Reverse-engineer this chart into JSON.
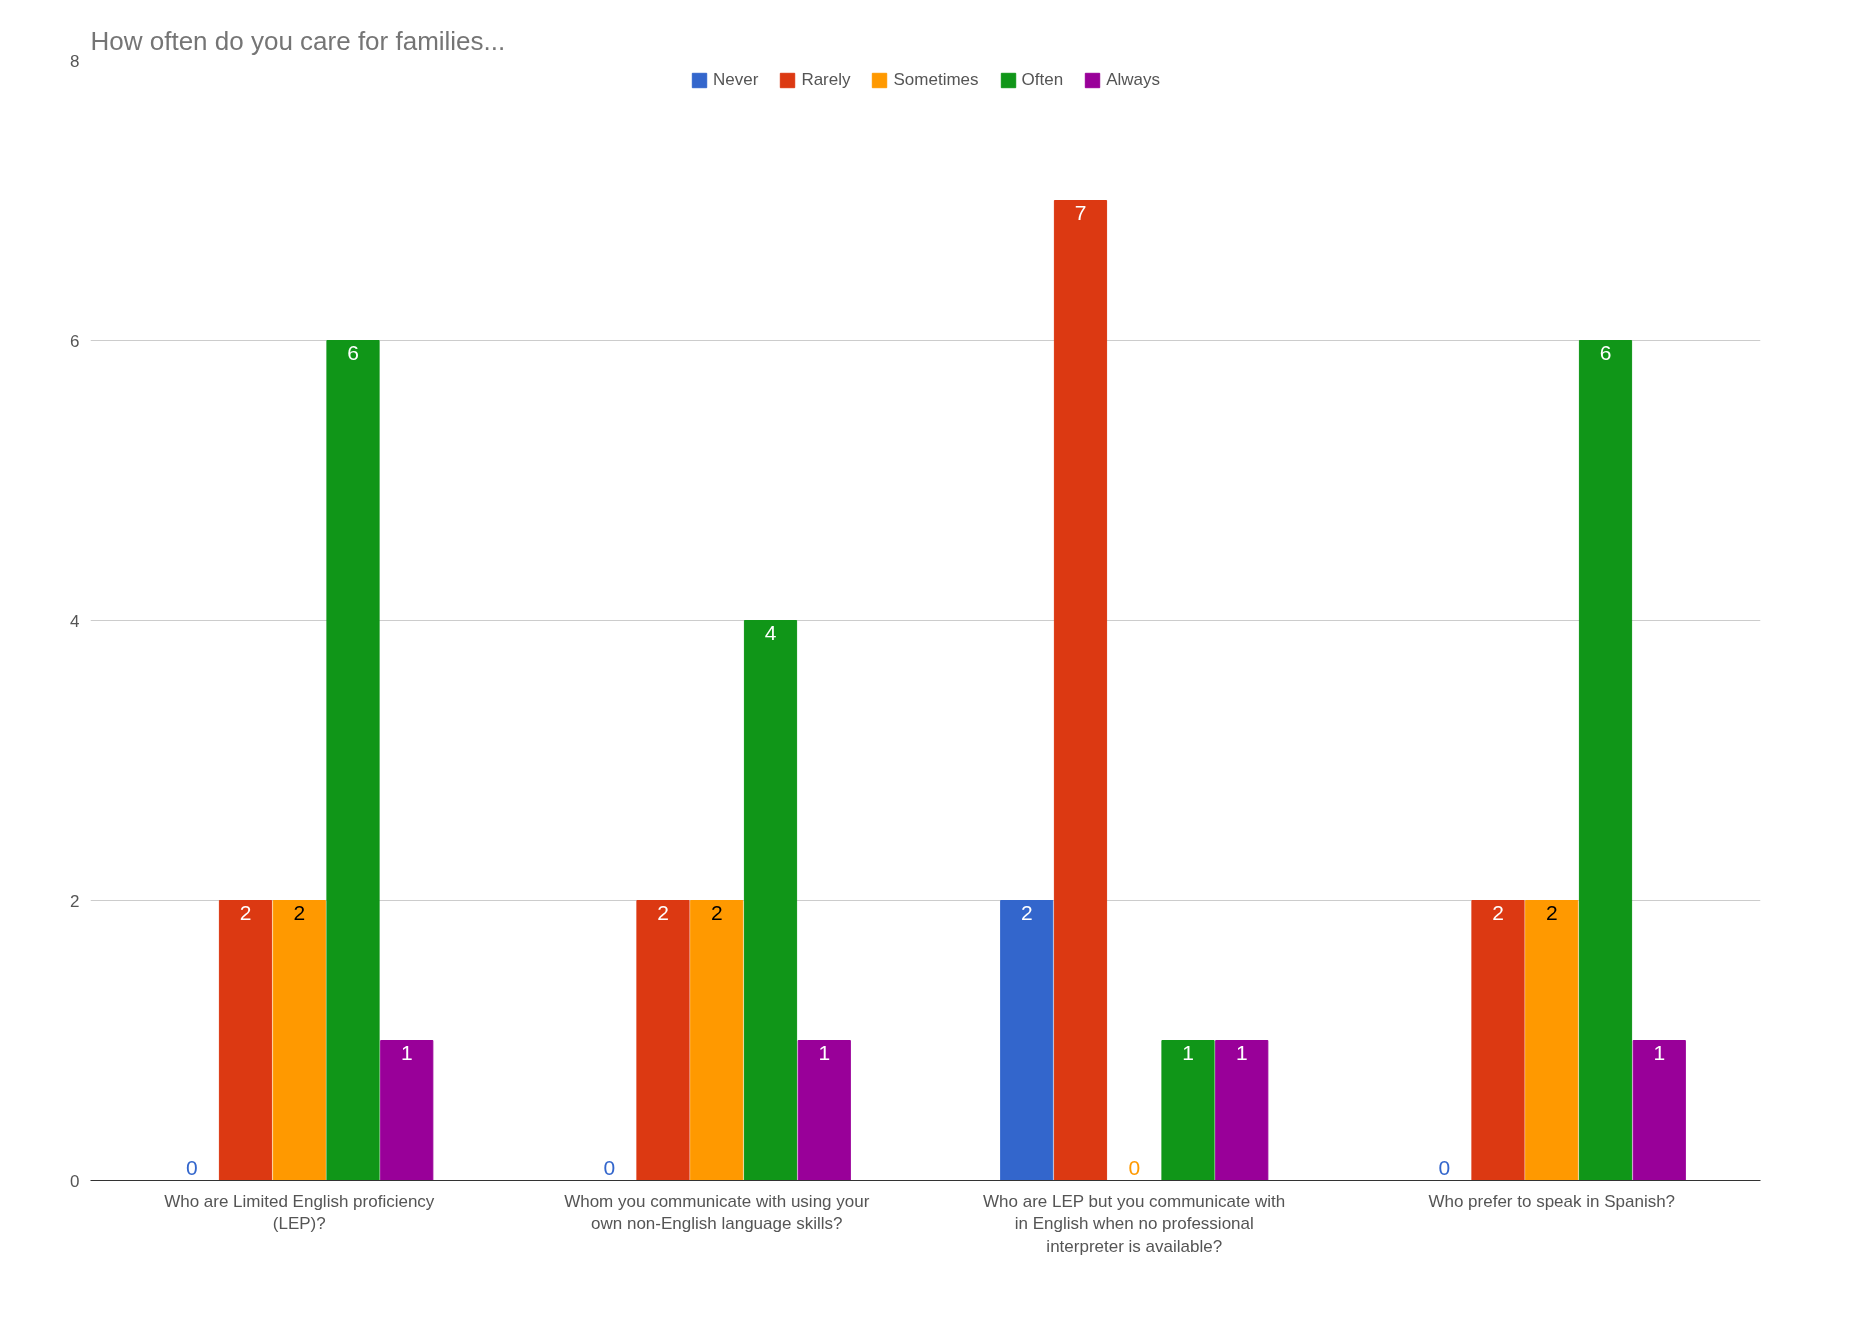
{
  "chart_data": {
    "type": "bar",
    "title": "How often do you care for families...",
    "categories": [
      "Who are Limited English proficiency (LEP)?",
      "Whom you communicate with using your own non-English language skills?",
      "Who are LEP but you communicate with in English when no professional interpreter is available?",
      "Who prefer to speak in Spanish?"
    ],
    "series": [
      {
        "name": "Never",
        "color": "#3366cc",
        "values": [
          0,
          0,
          2,
          0
        ]
      },
      {
        "name": "Rarely",
        "color": "#dc3912",
        "values": [
          2,
          2,
          7,
          2
        ]
      },
      {
        "name": "Sometimes",
        "color": "#ff9900",
        "values": [
          2,
          2,
          0,
          2
        ]
      },
      {
        "name": "Often",
        "color": "#109618",
        "values": [
          6,
          4,
          1,
          6
        ]
      },
      {
        "name": "Always",
        "color": "#990099",
        "values": [
          1,
          1,
          1,
          1
        ]
      }
    ],
    "ylim": [
      0,
      8
    ],
    "yticks": [
      0,
      2,
      4,
      6,
      8
    ],
    "grid": "y",
    "legend": "top",
    "data_labels": true
  }
}
